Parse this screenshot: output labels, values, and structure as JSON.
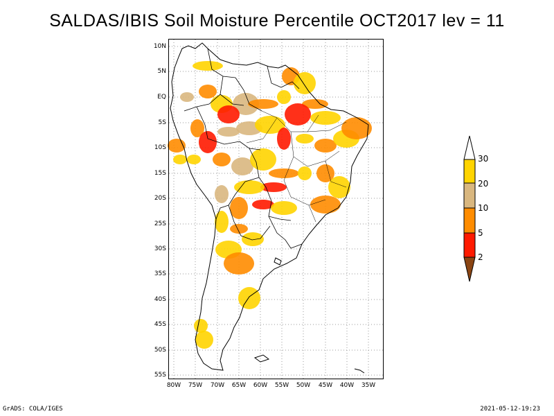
{
  "title": "SALDAS/IBIS Soil Moisture Percentile OCT2017 lev = 11",
  "map": {
    "region": "South America",
    "lon_range": [
      -81,
      -32
    ],
    "lat_range": [
      -56,
      12
    ],
    "lat_ticks": [
      "10N",
      "5N",
      "EQ",
      "5S",
      "10S",
      "15S",
      "20S",
      "25S",
      "30S",
      "35S",
      "40S",
      "45S",
      "50S",
      "55S"
    ],
    "lon_ticks": [
      "80W",
      "75W",
      "70W",
      "65W",
      "60W",
      "55W",
      "50W",
      "45W",
      "40W",
      "35W"
    ]
  },
  "legend": {
    "labels": [
      "30",
      "20",
      "10",
      "5",
      "2"
    ],
    "colors": {
      "above_30": "#ffffff",
      "p20_30": "#ffd400",
      "p10_20": "#d9b77f",
      "p5_10": "#ff8c00",
      "p2_5": "#ff1a00",
      "below_2": "#8b4513"
    }
  },
  "footer": {
    "left": "GrADS: COLA/IGES",
    "right": "2021-05-12-19:23"
  }
}
